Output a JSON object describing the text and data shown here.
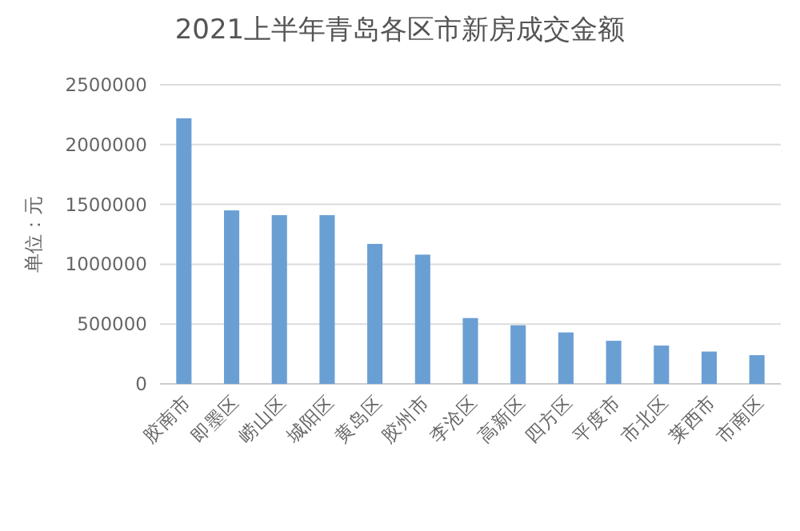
{
  "chart_data": {
    "type": "bar",
    "title": "2021上半年青岛各区市新房成交金额",
    "ylabel": "单位：元",
    "categories": [
      "胶南市",
      "即墨区",
      "崂山区",
      "城阳区",
      "黄岛区",
      "胶州市",
      "李沧区",
      "高新区",
      "四方区",
      "平度市",
      "市北区",
      "莱西市",
      "市南区"
    ],
    "values": [
      2220000,
      1450000,
      1410000,
      1410000,
      1170000,
      1080000,
      550000,
      490000,
      430000,
      360000,
      320000,
      270000,
      240000
    ],
    "color": "#6a9fd4",
    "ylim": [
      0,
      2500000
    ],
    "yticks": [
      0,
      500000,
      1000000,
      1500000,
      2000000,
      2500000
    ],
    "grid": "y"
  }
}
